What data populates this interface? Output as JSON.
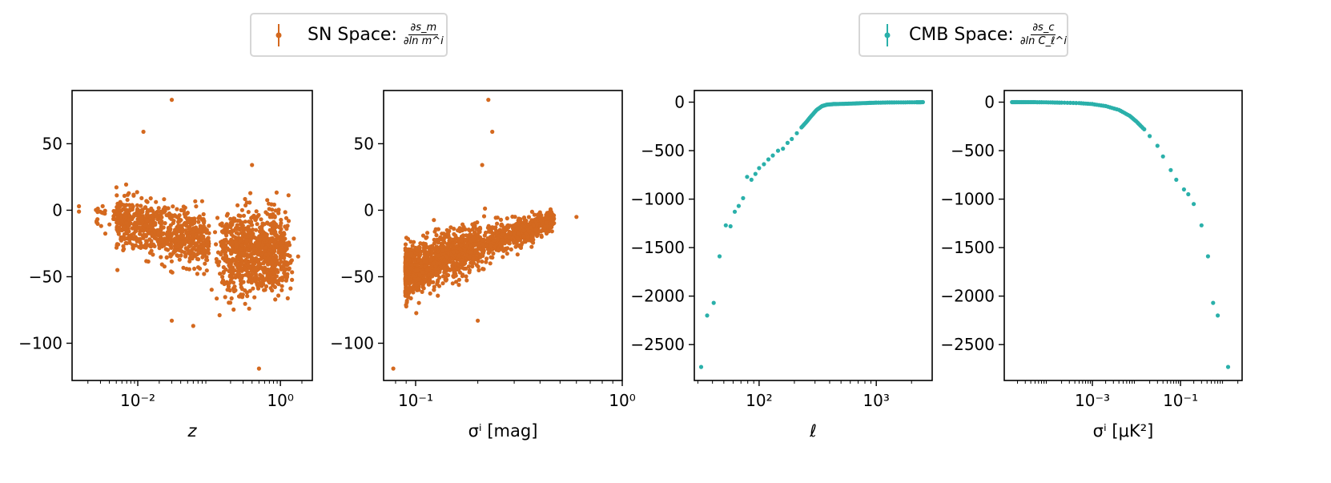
{
  "legend": [
    {
      "label": "SN Space:",
      "num": "∂s_m",
      "den": "∂ln m^i",
      "color": "#d4691f"
    },
    {
      "label": "CMB Space:",
      "num": "∂s_c",
      "den": "∂ln C_ℓ^i",
      "color": "#2ab0aa"
    }
  ],
  "chart_data": [
    {
      "type": "scatter",
      "series_ref": "SN Space",
      "xscale": "log",
      "xlim": [
        0.0012,
        2.8
      ],
      "ylim": [
        -128,
        90
      ],
      "xticks": [
        0.01,
        1
      ],
      "xticklabels": [
        "10⁻²",
        "10⁰"
      ],
      "yticks": [
        50,
        0,
        -50,
        -100
      ],
      "yticklabels": [
        "50",
        "0",
        "−50",
        "−100"
      ],
      "xlabel": "z",
      "ylabel": "",
      "color": "#d4691f",
      "points_described": "about 1700 SN points; dense cloud at z 0.01–0.1 around y ≈ −20, second cloud at z 0.2–1 down to y ≈ −100",
      "outliers": [
        [
          0.03,
          83
        ],
        [
          0.012,
          59
        ],
        [
          0.4,
          34
        ],
        [
          0.03,
          -83
        ],
        [
          0.06,
          -87
        ],
        [
          0.5,
          -119
        ],
        [
          0.0015,
          3
        ],
        [
          0.0015,
          -1
        ]
      ]
    },
    {
      "type": "scatter",
      "series_ref": "SN Space",
      "xscale": "log",
      "xlim": [
        0.07,
        1
      ],
      "ylim": [
        -128,
        90
      ],
      "xticks": [
        0.1,
        1
      ],
      "xticklabels": [
        "10⁻¹",
        "10⁰"
      ],
      "yticks": [
        50,
        0,
        -50,
        -100
      ],
      "yticklabels": [
        "50",
        "0",
        "−50",
        "−100"
      ],
      "xlabel": "σ^i [mag]",
      "ylabel": "",
      "color": "#d4691f",
      "outliers": [
        [
          0.225,
          83
        ],
        [
          0.235,
          59
        ],
        [
          0.21,
          34
        ],
        [
          0.2,
          -83
        ],
        [
          0.078,
          -119
        ],
        [
          0.6,
          -5
        ]
      ]
    },
    {
      "type": "scatter",
      "series_ref": "CMB Space",
      "xscale": "log",
      "xlim": [
        28,
        3000
      ],
      "ylim": [
        -2870,
        120
      ],
      "xticks": [
        100,
        1000
      ],
      "xticklabels": [
        "10²",
        "10³"
      ],
      "yticks": [
        0,
        -500,
        -1000,
        -1500,
        -2000,
        -2500
      ],
      "yticklabels": [
        "0",
        "−500",
        "−1000",
        "−1500",
        "−2000",
        "−2500"
      ],
      "xlabel": "ℓ",
      "ylabel": "",
      "color": "#2ab0aa",
      "points": [
        [
          32,
          -2730
        ],
        [
          36,
          -2200
        ],
        [
          41,
          -2070
        ],
        [
          46,
          -1590
        ],
        [
          52,
          -1270
        ],
        [
          57,
          -1280
        ],
        [
          62,
          -1130
        ],
        [
          67,
          -1070
        ],
        [
          73,
          -990
        ],
        [
          79,
          -770
        ],
        [
          86,
          -800
        ],
        [
          93,
          -740
        ],
        [
          100,
          -680
        ],
        [
          110,
          -640
        ],
        [
          120,
          -590
        ],
        [
          131,
          -550
        ],
        [
          145,
          -500
        ],
        [
          160,
          -480
        ],
        [
          175,
          -420
        ],
        [
          190,
          -380
        ],
        [
          210,
          -320
        ],
        [
          230,
          -260
        ],
        [
          255,
          -200
        ],
        [
          280,
          -140
        ],
        [
          310,
          -80
        ],
        [
          345,
          -40
        ],
        [
          380,
          -25
        ],
        [
          430,
          -20
        ],
        [
          500,
          -18
        ],
        [
          600,
          -15
        ],
        [
          700,
          -12
        ],
        [
          850,
          -8
        ],
        [
          1000,
          -5
        ],
        [
          1300,
          -3
        ],
        [
          1700,
          -2
        ],
        [
          2200,
          -1
        ],
        [
          2500,
          0
        ]
      ]
    },
    {
      "type": "scatter",
      "series_ref": "CMB Space",
      "xscale": "log",
      "xlim": [
        1e-05,
        2.5
      ],
      "ylim": [
        -2870,
        120
      ],
      "xticks": [
        0.001,
        0.1
      ],
      "xticklabels": [
        "10⁻³",
        "10⁻¹"
      ],
      "yticks": [
        0,
        -500,
        -1000,
        -1500,
        -2000,
        -2500
      ],
      "yticklabels": [
        "0",
        "−500",
        "−1000",
        "−1500",
        "−2000",
        "−2500"
      ],
      "xlabel": "σ^i [μK²]",
      "ylabel": "",
      "color": "#2ab0aa",
      "points": [
        [
          1.5e-05,
          0
        ],
        [
          2e-05,
          0
        ],
        [
          3e-05,
          0
        ],
        [
          5e-05,
          0
        ],
        [
          0.0001,
          -2
        ],
        [
          0.0002,
          -5
        ],
        [
          0.0005,
          -10
        ],
        [
          0.001,
          -20
        ],
        [
          0.002,
          -40
        ],
        [
          0.004,
          -80
        ],
        [
          0.007,
          -140
        ],
        [
          0.01,
          -200
        ],
        [
          0.015,
          -280
        ],
        [
          0.02,
          -350
        ],
        [
          0.03,
          -450
        ],
        [
          0.04,
          -560
        ],
        [
          0.06,
          -700
        ],
        [
          0.08,
          -800
        ],
        [
          0.12,
          -900
        ],
        [
          0.15,
          -950
        ],
        [
          0.2,
          -1050
        ],
        [
          0.3,
          -1270
        ],
        [
          0.42,
          -1590
        ],
        [
          0.55,
          -2070
        ],
        [
          0.7,
          -2200
        ],
        [
          1.2,
          -2730
        ]
      ]
    }
  ]
}
